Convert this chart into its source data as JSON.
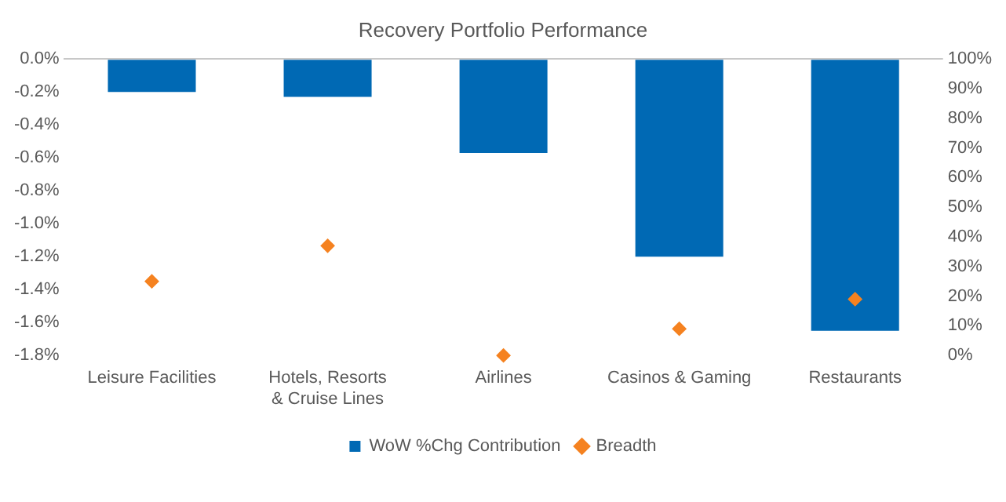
{
  "chart_data": {
    "type": "bar",
    "title": "Recovery Portfolio Performance",
    "categories": [
      "Leisure Facilities",
      "Hotels, Resorts & Cruise Lines",
      "Airlines",
      "Casinos & Gaming",
      "Restaurants"
    ],
    "series": [
      {
        "name": "WoW %Chg Contribution",
        "type": "bar",
        "color": "#0069b4",
        "values": [
          -0.2,
          -0.23,
          -0.57,
          -1.2,
          -1.65
        ]
      },
      {
        "name": "Breadth",
        "type": "scatter",
        "axis": "y2",
        "marker": "diamond",
        "color": "#f58220",
        "x": [
          "Leisure Facilities",
          "Hotels, Resorts & Cruise Lines",
          "Airlines",
          "Casinos & Gaming",
          "Restaurants"
        ],
        "values": [
          25,
          37,
          0,
          9,
          19
        ]
      }
    ],
    "ylim": [
      -1.8,
      0
    ],
    "yticks": [
      {
        "value": 0,
        "label": "0.0%"
      },
      {
        "value": -0.2,
        "label": "-0.2%"
      },
      {
        "value": -0.4,
        "label": "-0.4%"
      },
      {
        "value": -0.6,
        "label": "-0.6%"
      },
      {
        "value": -0.8,
        "label": "-0.8%"
      },
      {
        "value": -1.0,
        "label": "-1.0%"
      },
      {
        "value": -1.2,
        "label": "-1.2%"
      },
      {
        "value": -1.4,
        "label": "-1.4%"
      },
      {
        "value": -1.6,
        "label": "-1.6%"
      },
      {
        "value": -1.8,
        "label": "-1.8%"
      }
    ],
    "y2lim": [
      0,
      100
    ],
    "y2ticks": [
      {
        "value": 0,
        "label": "0%"
      },
      {
        "value": 10,
        "label": "10%"
      },
      {
        "value": 20,
        "label": "20%"
      },
      {
        "value": 30,
        "label": "30%"
      },
      {
        "value": 40,
        "label": "40%"
      },
      {
        "value": 50,
        "label": "50%"
      },
      {
        "value": 60,
        "label": "60%"
      },
      {
        "value": 70,
        "label": "70%"
      },
      {
        "value": 80,
        "label": "80%"
      },
      {
        "value": 90,
        "label": "90%"
      },
      {
        "value": 100,
        "label": "100%"
      }
    ],
    "grid": false,
    "legend": "bottom"
  }
}
